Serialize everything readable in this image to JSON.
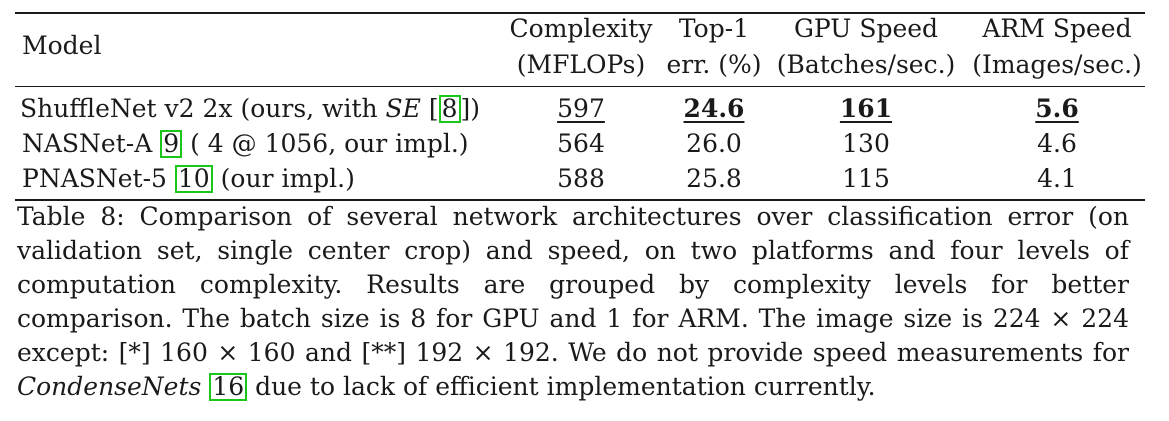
{
  "table": {
    "headers": {
      "model": "Model",
      "complexity": [
        "Complexity",
        "(MFLOPs)"
      ],
      "top1": [
        "Top-1",
        "err. (%)"
      ],
      "gpu": [
        "GPU Speed",
        "(Batches/sec.)"
      ],
      "arm": [
        "ARM Speed",
        "(Images/sec.)"
      ]
    },
    "rows": [
      {
        "model_prefix": "ShuffleNet v2 2x (ours, with ",
        "model_italic": "SE",
        "model_open": " [",
        "cite": "8",
        "model_suffix": "])",
        "complexity": "597",
        "top1": "24.6",
        "gpu": "161",
        "arm": "5.6"
      },
      {
        "model_prefix": "NASNet-A ",
        "cite": "9",
        "model_suffix": " ( 4 @ 1056, our impl.)",
        "complexity": "564",
        "top1": "26.0",
        "gpu": "130",
        "arm": "4.6"
      },
      {
        "model_prefix": "PNASNet-5 ",
        "cite": "10",
        "model_suffix": " (our impl.)",
        "complexity": "588",
        "top1": "25.8",
        "gpu": "115",
        "arm": "4.1"
      }
    ]
  },
  "caption": {
    "text_before": "Table 8: Comparison of several network architectures over classification error (on validation set, single center crop) and speed, on two platforms and four levels of computation complexity. Results are grouped by complexity levels for better comparison. The batch size is 8 for GPU and 1 for ARM. The image size is 224 × 224 except: [*] 160 × 160 and [**] 192 × 192. We do not provide speed measurements for ",
    "italic": "CondenseNets",
    "cite": "16",
    "text_after": " due to lack of efficient implementation currently."
  }
}
